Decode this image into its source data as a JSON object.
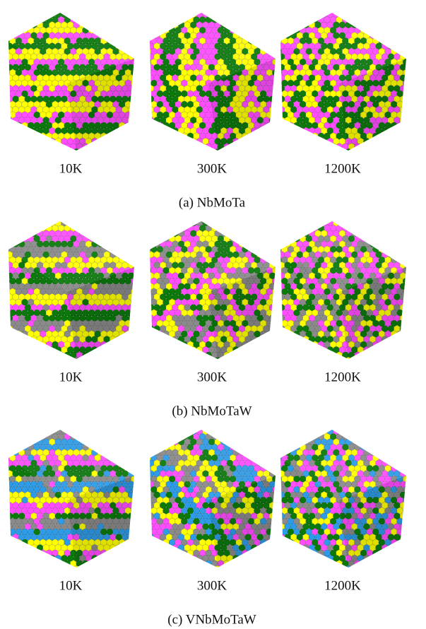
{
  "panels": [
    {
      "temperatures": [
        "10K",
        "300K",
        "1200K"
      ],
      "caption": "(a) NbMoTa"
    },
    {
      "temperatures": [
        "10K",
        "300K",
        "1200K"
      ],
      "caption": "(b) NbMoTaW"
    },
    {
      "temperatures": [
        "10K",
        "300K",
        "1200K"
      ],
      "caption": "(c) VNbMoTaW"
    }
  ]
}
